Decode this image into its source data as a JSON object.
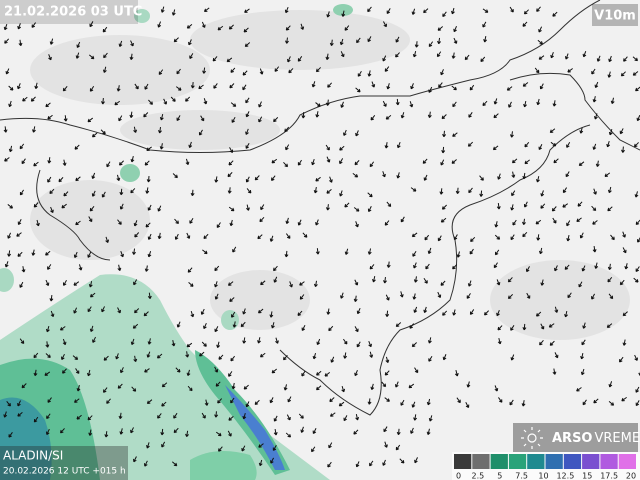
{
  "header": {
    "valid_time": "21.02.2026 03 UTC",
    "variable": "V10m"
  },
  "footer": {
    "model": "ALADIN/SI",
    "run": "20.02.2026 12 UTC +015 h"
  },
  "logo": {
    "brand": "ARSO",
    "product": "VREME"
  },
  "legend": {
    "labels": [
      "0",
      "2.5",
      "5",
      "7.5",
      "10",
      "12.5",
      "15",
      "17.5",
      "20"
    ],
    "colors": [
      "#3a3a3a",
      "#6e6e6e",
      "#1f8f6a",
      "#2aa37a",
      "#1f8a90",
      "#2f6fb0",
      "#3f57c0",
      "#7a4fd0",
      "#b05ae0",
      "#e070e8"
    ]
  }
}
